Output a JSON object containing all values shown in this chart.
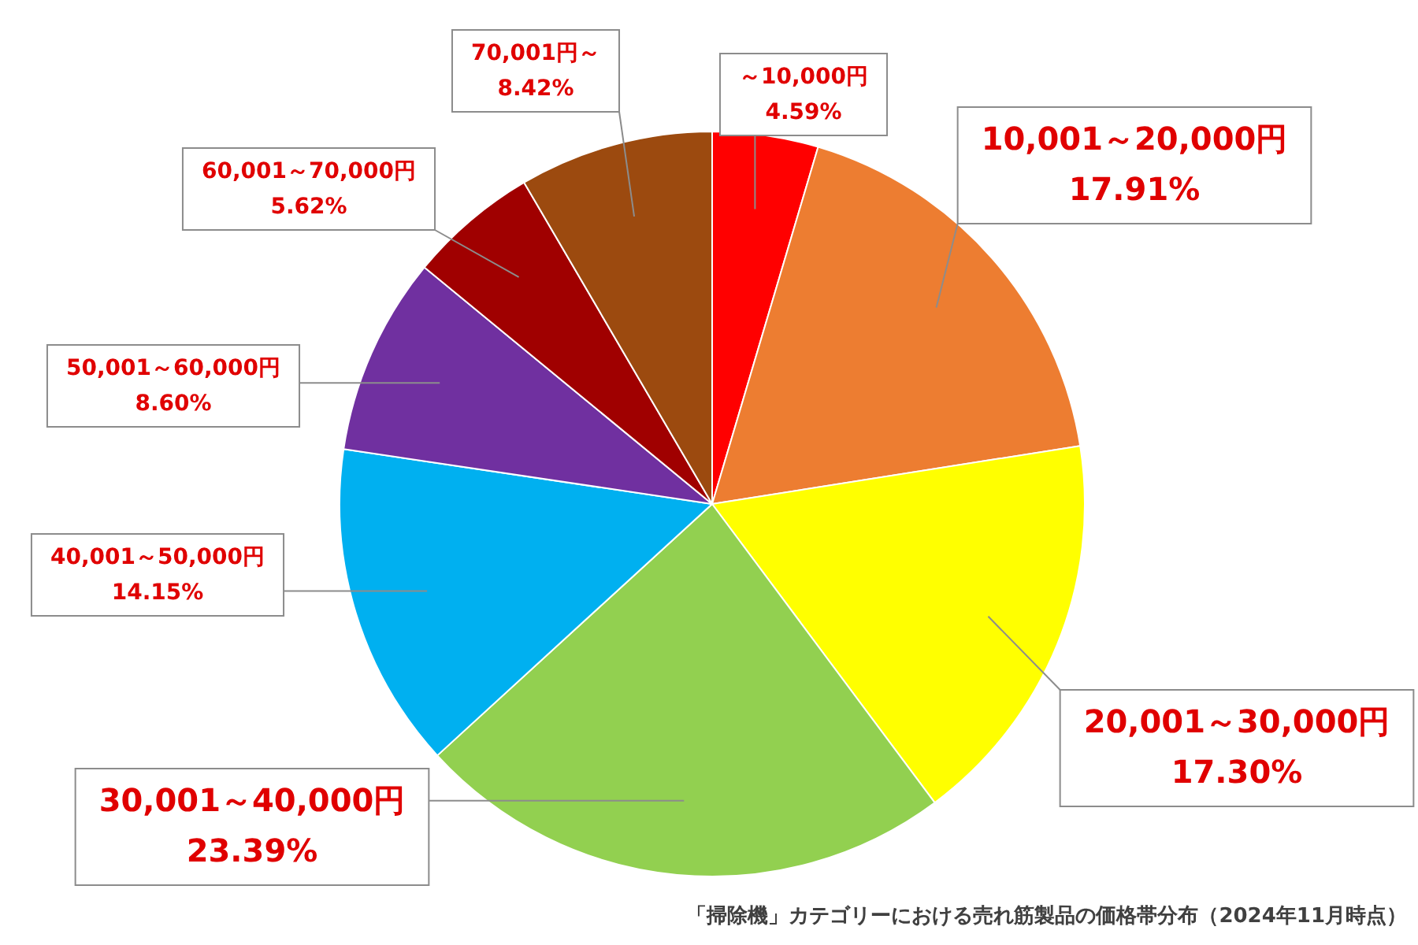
{
  "chart_data": {
    "type": "pie",
    "categories": [
      "～10,000円",
      "10,001～20,000円",
      "20,001～30,000円",
      "30,001～40,000円",
      "40,001～50,000円",
      "50,001～60,000円",
      "60,001～70,000円",
      "70,001円～"
    ],
    "values": [
      4.59,
      17.91,
      17.3,
      23.39,
      14.15,
      8.6,
      5.62,
      8.42
    ],
    "value_labels": [
      "4.59%",
      "17.91%",
      "17.30%",
      "23.39%",
      "14.15%",
      "8.60%",
      "5.62%",
      "8.42%"
    ],
    "colors": [
      "#ff0000",
      "#ed7d31",
      "#ffff00",
      "#92d050",
      "#00b0f0",
      "#7030a0",
      "#a00000",
      "#9c4a0f"
    ],
    "legend": false,
    "annotations": [
      "「掃除機」カテゴリーにおける売れ筋製品の価格帯分布（2024年11月時点）"
    ]
  }
}
